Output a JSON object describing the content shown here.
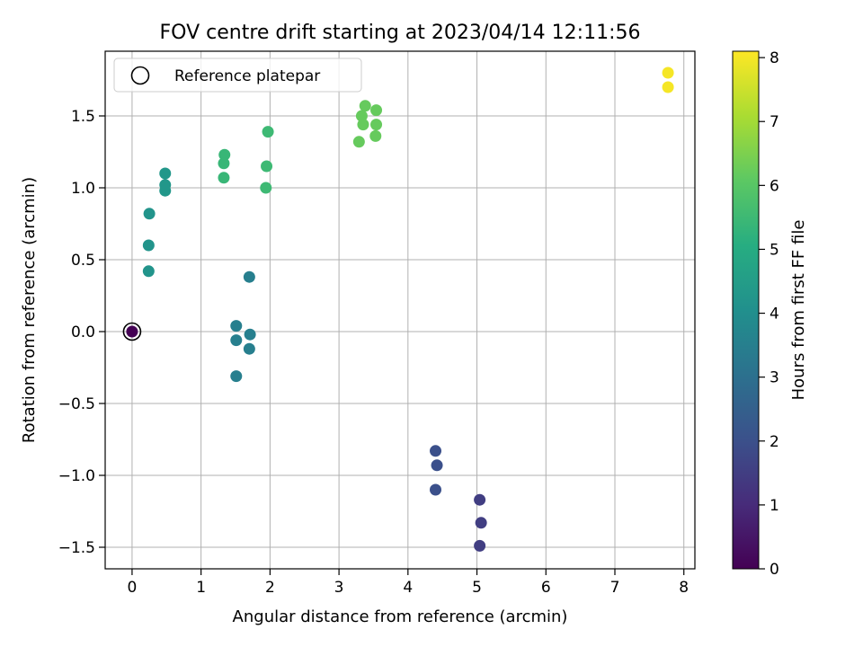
{
  "chart_data": {
    "type": "scatter",
    "title": "FOV centre drift starting at 2023/04/14 12:11:56",
    "xlabel": "Angular distance from reference (arcmin)",
    "ylabel": "Rotation from reference (arcmin)",
    "xlim": [
      -0.39,
      8.16
    ],
    "ylim": [
      -1.65,
      1.95
    ],
    "xticks": [
      0,
      1,
      2,
      3,
      4,
      5,
      6,
      7,
      8
    ],
    "xtick_labels": [
      "0",
      "1",
      "2",
      "3",
      "4",
      "5",
      "6",
      "7",
      "8"
    ],
    "yticks": [
      -1.5,
      -1.0,
      -0.5,
      0.0,
      0.5,
      1.0,
      1.5
    ],
    "ytick_labels": [
      "−1.5",
      "−1.0",
      "−0.5",
      "0.0",
      "0.5",
      "1.0",
      "1.5"
    ],
    "grid": true,
    "legend": {
      "position": "top-left",
      "entries": [
        {
          "label": "Reference platepar",
          "marker": "open-circle-black"
        }
      ]
    },
    "colorbar": {
      "label": "Hours from first FF file",
      "colormap": "viridis",
      "range": [
        0,
        8.1
      ],
      "ticks": [
        0,
        1,
        2,
        3,
        4,
        5,
        6,
        7,
        8
      ],
      "tick_labels": [
        "0",
        "1",
        "2",
        "3",
        "4",
        "5",
        "6",
        "7",
        "8"
      ]
    },
    "reference_point": {
      "x": 0.0,
      "y": 0.0
    },
    "points": [
      {
        "x": 0.0,
        "y": 0.0,
        "c": 0.0
      },
      {
        "x": 5.04,
        "y": -1.17,
        "c": 1.5
      },
      {
        "x": 5.06,
        "y": -1.33,
        "c": 1.5
      },
      {
        "x": 5.04,
        "y": -1.49,
        "c": 1.5
      },
      {
        "x": 4.4,
        "y": -0.83,
        "c": 2.0
      },
      {
        "x": 4.42,
        "y": -0.93,
        "c": 2.0
      },
      {
        "x": 4.4,
        "y": -1.1,
        "c": 2.0
      },
      {
        "x": 1.7,
        "y": 0.38,
        "c": 3.5
      },
      {
        "x": 1.51,
        "y": 0.04,
        "c": 3.5
      },
      {
        "x": 1.71,
        "y": -0.02,
        "c": 3.5
      },
      {
        "x": 1.51,
        "y": -0.06,
        "c": 3.5
      },
      {
        "x": 1.7,
        "y": -0.12,
        "c": 3.5
      },
      {
        "x": 1.51,
        "y": -0.31,
        "c": 3.5
      },
      {
        "x": 0.25,
        "y": 0.82,
        "c": 4.2
      },
      {
        "x": 0.24,
        "y": 0.6,
        "c": 4.2
      },
      {
        "x": 0.24,
        "y": 0.42,
        "c": 4.2
      },
      {
        "x": 0.48,
        "y": 1.1,
        "c": 4.3
      },
      {
        "x": 0.48,
        "y": 1.02,
        "c": 4.3
      },
      {
        "x": 0.48,
        "y": 0.98,
        "c": 4.3
      },
      {
        "x": 1.34,
        "y": 1.23,
        "c": 5.4
      },
      {
        "x": 1.33,
        "y": 1.17,
        "c": 5.4
      },
      {
        "x": 1.33,
        "y": 1.07,
        "c": 5.4
      },
      {
        "x": 1.97,
        "y": 1.39,
        "c": 5.5
      },
      {
        "x": 1.95,
        "y": 1.15,
        "c": 5.5
      },
      {
        "x": 1.94,
        "y": 1.0,
        "c": 5.5
      },
      {
        "x": 3.38,
        "y": 1.57,
        "c": 6.2
      },
      {
        "x": 3.33,
        "y": 1.5,
        "c": 6.2
      },
      {
        "x": 3.54,
        "y": 1.54,
        "c": 6.2
      },
      {
        "x": 3.35,
        "y": 1.44,
        "c": 6.2
      },
      {
        "x": 3.54,
        "y": 1.44,
        "c": 6.2
      },
      {
        "x": 3.53,
        "y": 1.36,
        "c": 6.2
      },
      {
        "x": 3.29,
        "y": 1.32,
        "c": 6.2
      },
      {
        "x": 7.77,
        "y": 1.8,
        "c": 8.0
      },
      {
        "x": 7.77,
        "y": 1.7,
        "c": 8.0
      }
    ]
  }
}
